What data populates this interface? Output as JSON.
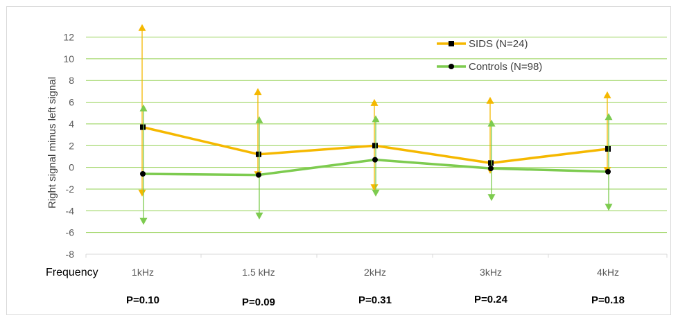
{
  "chart_data": {
    "type": "line",
    "ylabel": "Right signal minus left signal",
    "xlabel": "Frequency",
    "ylim": [
      -8,
      13
    ],
    "yticks": [
      -8,
      -6,
      -4,
      -2,
      0,
      2,
      4,
      6,
      8,
      10,
      12
    ],
    "categories": [
      "1kHz",
      "1.5 kHz",
      "2kHz",
      "3kHz",
      "4kHz"
    ],
    "p_values": [
      "P=0.10",
      "P=0.09",
      "P=0.31",
      "P=0.24",
      "P=0.18"
    ],
    "grid": true,
    "legend_position": "top-right",
    "series": [
      {
        "name": "SIDS (N=24)",
        "color": "#f5b800",
        "marker": "square",
        "values": [
          3.7,
          1.2,
          2.0,
          0.4,
          1.7
        ],
        "err_upper": [
          13.2,
          7.3,
          6.3,
          6.5,
          7.0
        ],
        "err_lower": [
          -2.7,
          -1.0,
          -2.2,
          -0.6,
          -0.6
        ]
      },
      {
        "name": "Controls (N=98)",
        "color": "#7dcb4f",
        "marker": "circle",
        "values": [
          -0.6,
          -0.7,
          0.7,
          -0.1,
          -0.4
        ],
        "err_upper": [
          5.8,
          4.7,
          4.8,
          4.4,
          5.0
        ],
        "err_lower": [
          -5.3,
          -4.8,
          -2.7,
          -3.1,
          -4.0
        ]
      }
    ]
  }
}
